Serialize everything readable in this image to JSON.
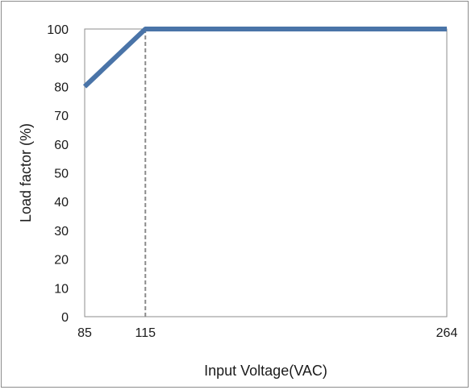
{
  "chart_data": {
    "type": "line",
    "title": "",
    "xlabel": "Input Voltage(VAC)",
    "ylabel": "Load factor (%)",
    "xlim": [
      85,
      264
    ],
    "ylim": [
      0,
      100
    ],
    "x_ticks": [
      85,
      115,
      264
    ],
    "y_ticks": [
      0,
      10,
      20,
      30,
      40,
      50,
      60,
      70,
      80,
      90,
      100
    ],
    "grid": false,
    "legend": "none",
    "series": [
      {
        "x": [
          85,
          115,
          264
        ],
        "y": [
          80,
          100,
          100
        ],
        "color": "#4a74a8"
      }
    ],
    "reference_lines": [
      {
        "orientation": "vertical",
        "x": 115,
        "style": "dashed",
        "color": "#8c8c8c"
      }
    ]
  }
}
